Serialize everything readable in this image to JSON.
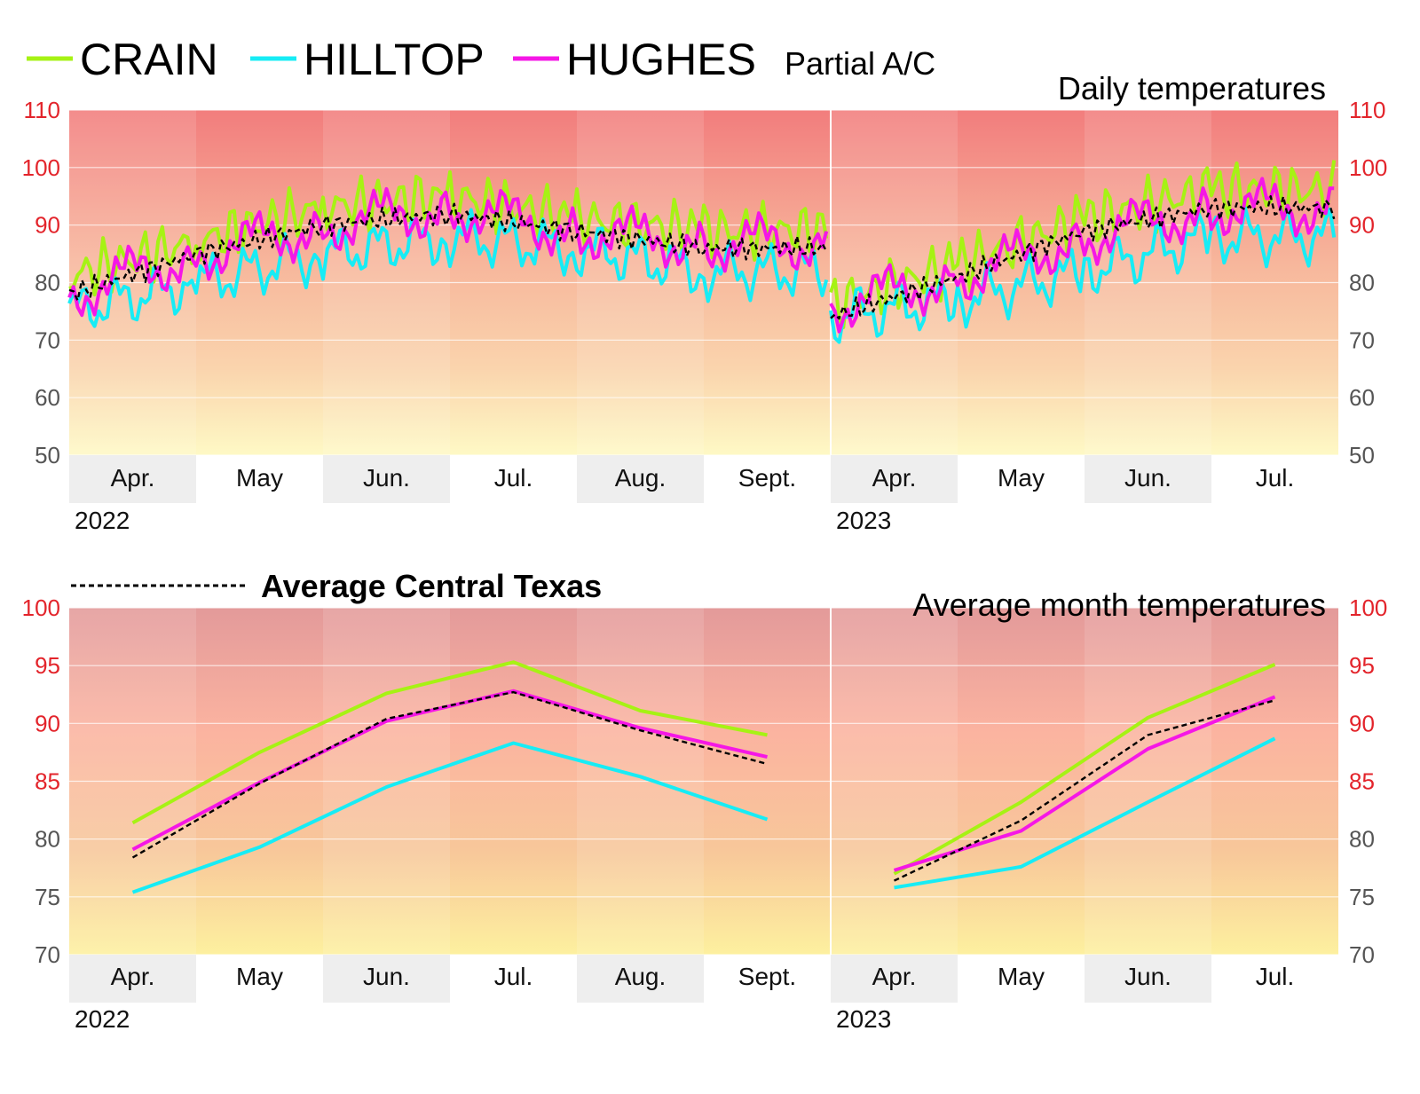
{
  "legend": {
    "items": [
      {
        "label": "CRAIN",
        "color": "#a6f214"
      },
      {
        "label": "HILLTOP",
        "color": "#17ecf5"
      },
      {
        "label": "HUGHES",
        "color": "#f517e6"
      }
    ],
    "note": "Partial A/C",
    "average_label": "Average Central Texas",
    "average_color": "#000000"
  },
  "colors": {
    "tick_red": "#e3242b",
    "tick_gray": "#555555",
    "band_gray": "#eeeeee"
  },
  "chart_data": [
    {
      "type": "line",
      "title": "Daily temperatures",
      "ylim": [
        50,
        110
      ],
      "yticks": [
        50,
        60,
        70,
        80,
        90,
        100,
        110
      ],
      "yticks_red": [
        90,
        100,
        110
      ],
      "grid": true,
      "years": [
        {
          "label": "2022",
          "months": [
            "Apr.",
            "May",
            "Jun.",
            "Jul.",
            "Aug.",
            "Sept."
          ]
        },
        {
          "label": "2023",
          "months": [
            "Apr.",
            "May",
            "Jun.",
            "Jul."
          ]
        }
      ],
      "x": [
        "2022-04",
        "2022-05",
        "2022-06",
        "2022-07",
        "2022-08",
        "2022-09",
        "2023-04",
        "2023-05",
        "2023-06",
        "2023-07"
      ],
      "series": [
        {
          "name": "CRAIN",
          "values": [
            81,
            87,
            93,
            95,
            91,
            89,
            76,
            83,
            91,
            96
          ],
          "dash": false
        },
        {
          "name": "HILLTOP",
          "values": [
            75,
            80,
            85,
            88,
            86,
            82,
            74,
            77,
            82,
            88
          ],
          "dash": false
        },
        {
          "name": "HUGHES",
          "values": [
            78,
            85,
            90,
            93,
            89,
            87,
            76,
            81,
            88,
            93
          ],
          "dash": false
        },
        {
          "name": "Average Central Texas",
          "values": [
            78,
            85,
            90,
            92,
            89,
            86,
            74,
            81,
            89,
            93
          ],
          "dash": true
        }
      ]
    },
    {
      "type": "line",
      "title": "Average month temperatures",
      "ylim": [
        70,
        100
      ],
      "yticks": [
        70,
        75,
        80,
        85,
        90,
        95,
        100
      ],
      "yticks_red": [
        85,
        90,
        95,
        100
      ],
      "grid": true,
      "years": [
        {
          "label": "2022",
          "months": [
            "Apr.",
            "May",
            "Jun.",
            "Jul.",
            "Aug.",
            "Sept."
          ]
        },
        {
          "label": "2023",
          "months": [
            "Apr.",
            "May",
            "Jun.",
            "Jul."
          ]
        }
      ],
      "x": [
        "2022-04",
        "2022-05",
        "2022-06",
        "2022-07",
        "2022-08",
        "2022-09",
        "2023-04",
        "2023-05",
        "2023-06",
        "2023-07"
      ],
      "series": [
        {
          "name": "CRAIN",
          "values": [
            81.4,
            87.5,
            92.6,
            95.3,
            91.1,
            89.0,
            77.0,
            83.2,
            90.5,
            95.1
          ]
        },
        {
          "name": "HILLTOP",
          "values": [
            75.4,
            79.3,
            84.5,
            88.3,
            85.4,
            81.7,
            75.8,
            77.6,
            83.2,
            88.7
          ]
        },
        {
          "name": "HUGHES",
          "values": [
            79.1,
            84.9,
            90.2,
            92.8,
            89.6,
            87.1,
            77.3,
            80.7,
            87.8,
            92.3
          ]
        },
        {
          "name": "Average Central Texas",
          "values": [
            78.4,
            84.8,
            90.4,
            92.7,
            89.4,
            86.5,
            76.4,
            81.6,
            89.0,
            92.0
          ],
          "dash": true
        }
      ]
    }
  ]
}
